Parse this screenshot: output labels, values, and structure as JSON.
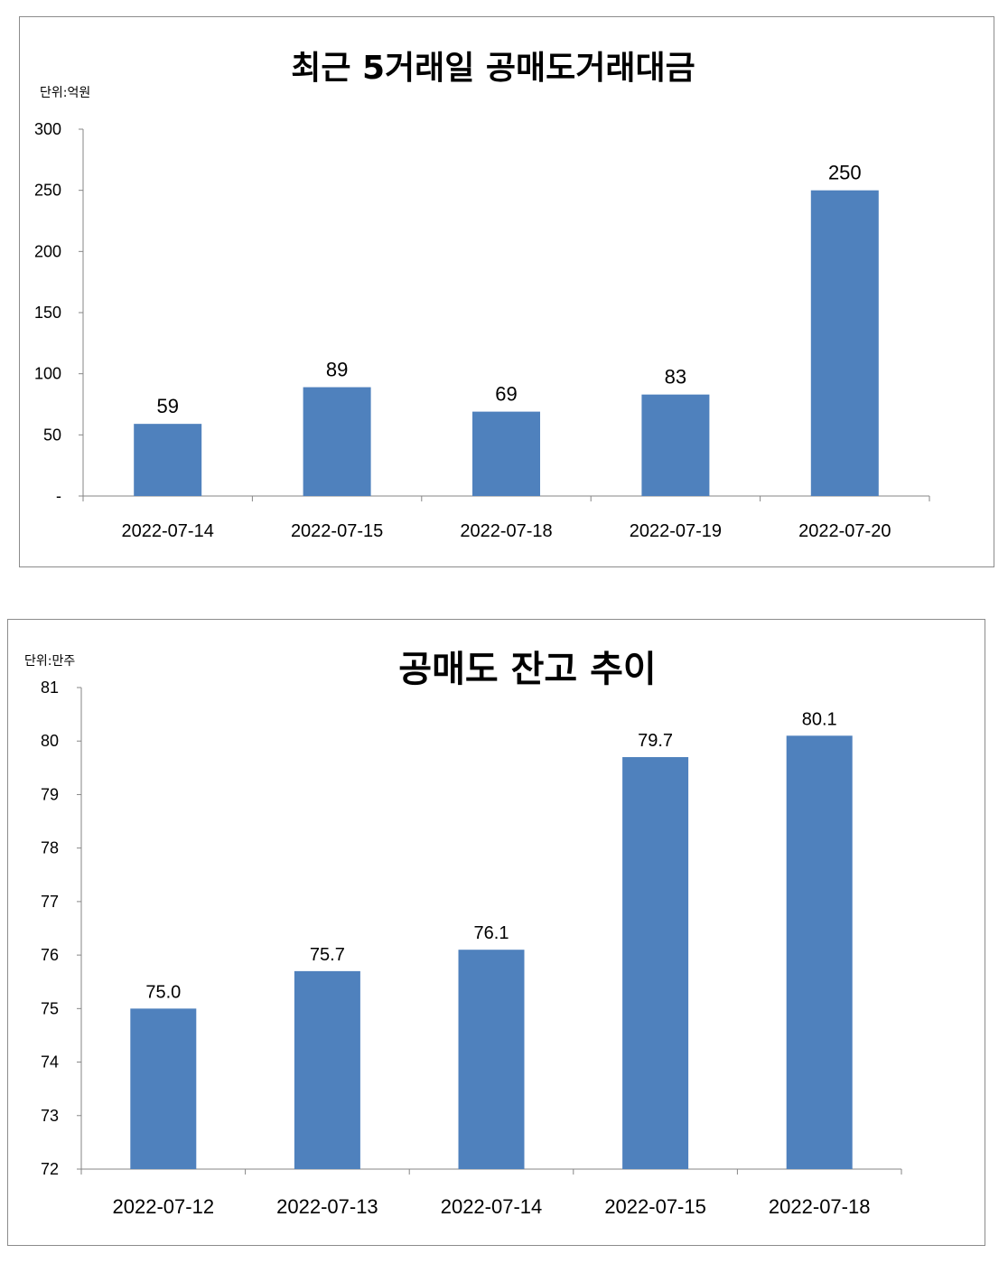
{
  "chart_data": [
    {
      "type": "bar",
      "title": "최근 5거래일 공매도거래대금",
      "unit_label": "단위:억원",
      "categories": [
        "2022-07-14",
        "2022-07-15",
        "2022-07-18",
        "2022-07-19",
        "2022-07-20"
      ],
      "values": [
        59,
        89,
        69,
        83,
        250
      ],
      "value_labels": [
        "59",
        "89",
        "69",
        "83",
        "250"
      ],
      "yticks": [
        "-",
        "50",
        "100",
        "150",
        "200",
        "250",
        "300"
      ],
      "ylim": [
        0,
        300
      ],
      "grid": false,
      "bar_color": "#4f81bd"
    },
    {
      "type": "bar",
      "title": "공매도 잔고 추이",
      "unit_label": "단위:만주",
      "categories": [
        "2022-07-12",
        "2022-07-13",
        "2022-07-14",
        "2022-07-15",
        "2022-07-18"
      ],
      "values": [
        75.0,
        75.7,
        76.1,
        79.7,
        80.1
      ],
      "value_labels": [
        "75.0",
        "75.7",
        "76.1",
        "79.7",
        "80.1"
      ],
      "yticks": [
        "72",
        "73",
        "74",
        "75",
        "76",
        "77",
        "78",
        "79",
        "80",
        "81"
      ],
      "ylim": [
        72,
        81
      ],
      "grid": false,
      "bar_color": "#4f81bd"
    }
  ]
}
